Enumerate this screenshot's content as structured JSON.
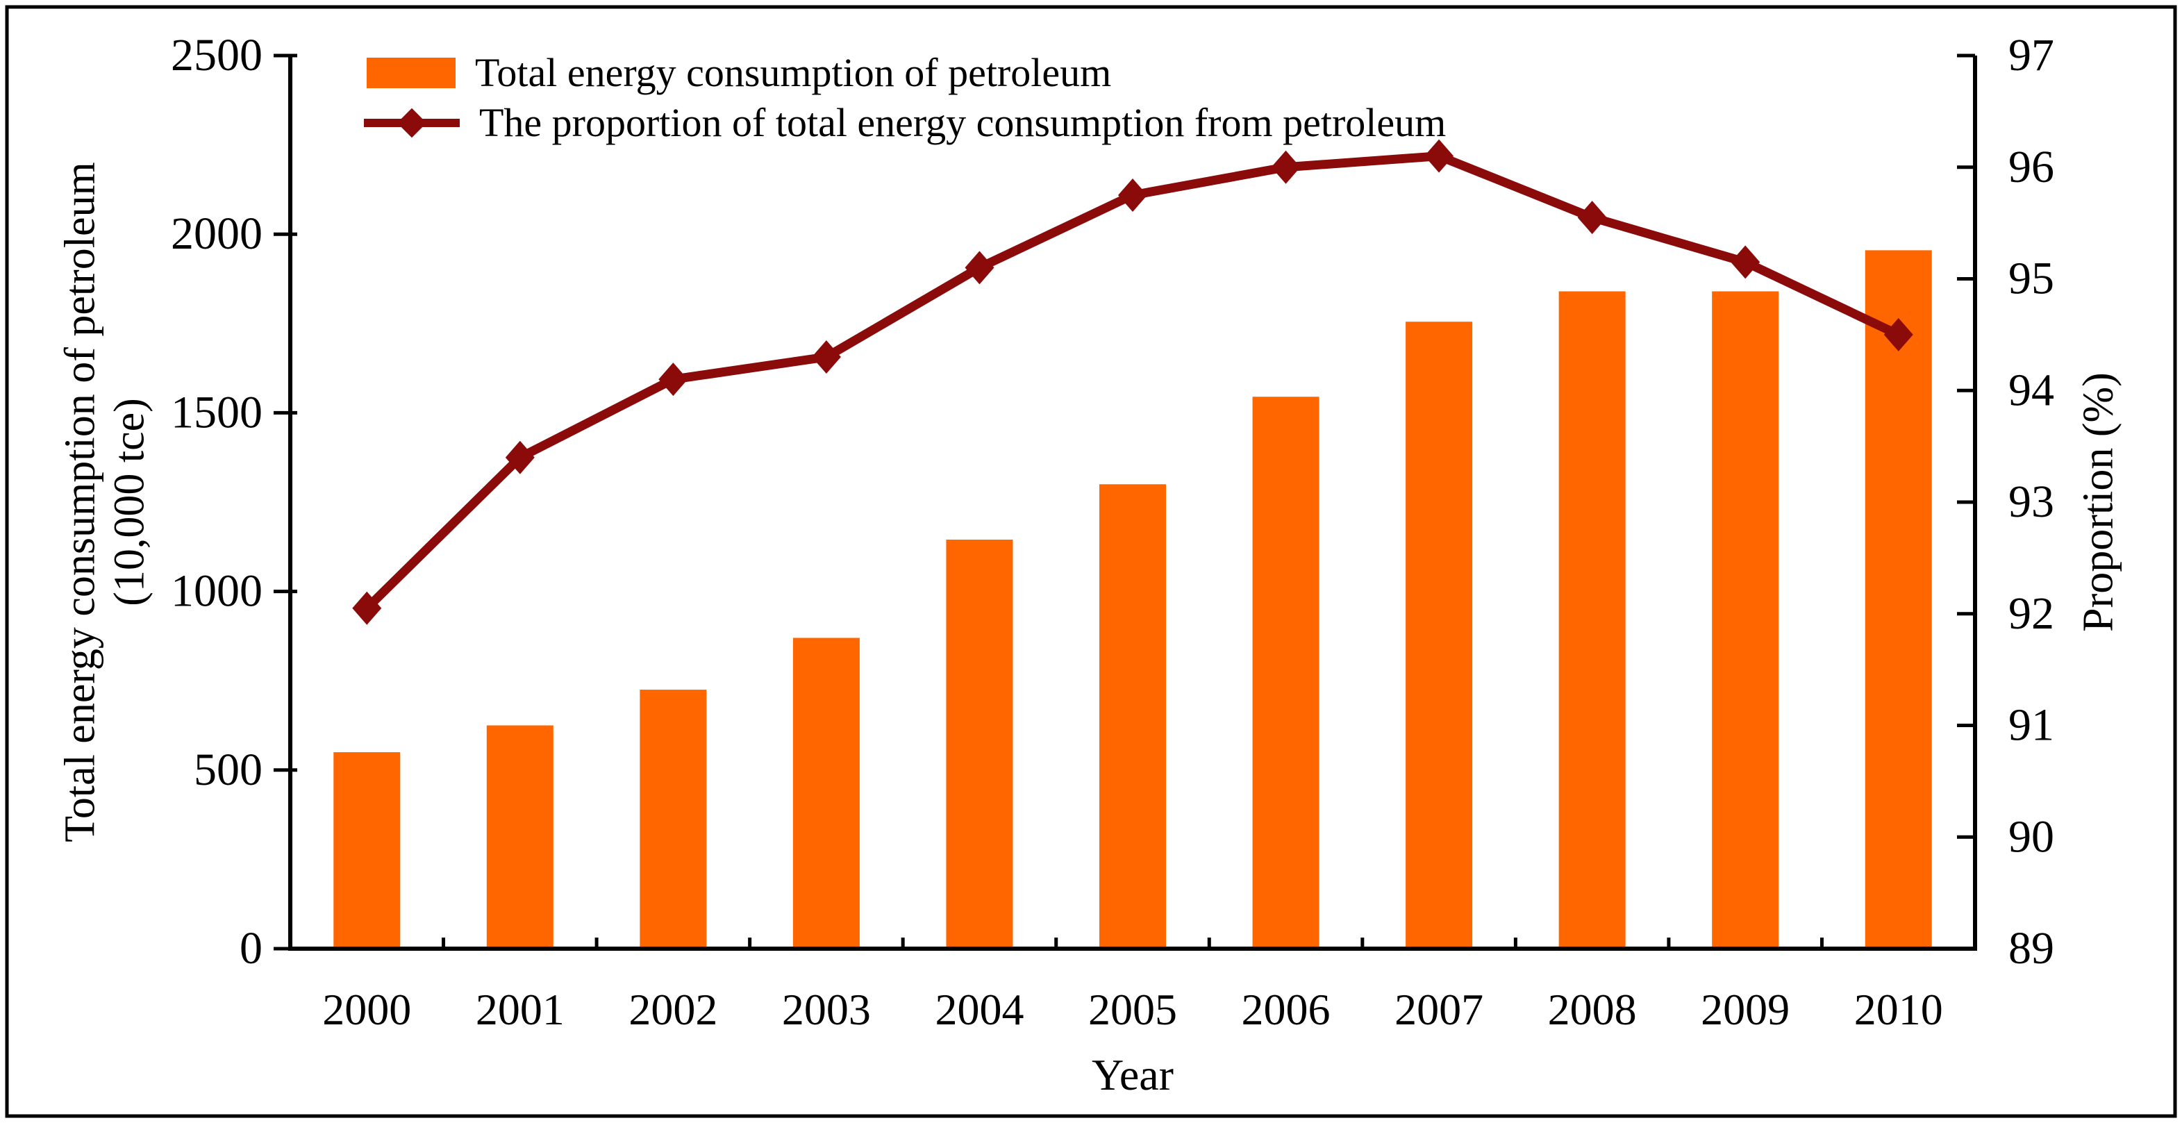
{
  "window": {
    "background": "#FFFFFF",
    "border_color": "#000000"
  },
  "legend": {
    "position": "top-left-inside",
    "items": [
      {
        "label": "Total energy consumption of petroleum",
        "marker": "bar-swatch",
        "color": "#FF6600"
      },
      {
        "label": "The proportion of total energy consumption from petroleum",
        "marker": "line-diamond",
        "color": "#8B0A0A"
      }
    ]
  },
  "chart_data": {
    "type": "combo-bar-line",
    "categories": [
      "2000",
      "2001",
      "2002",
      "2003",
      "2004",
      "2005",
      "2006",
      "2007",
      "2008",
      "2009",
      "2010"
    ],
    "series": [
      {
        "name": "Total energy consumption of petroleum",
        "type": "bar",
        "axis": "left",
        "color": "#FF6600",
        "values": [
          550,
          625,
          725,
          870,
          1145,
          1300,
          1545,
          1755,
          1840,
          1840,
          1955
        ]
      },
      {
        "name": "The proportion of total energy consumption from petroleum",
        "type": "line",
        "axis": "right",
        "color": "#8B0A0A",
        "marker": "diamond",
        "values": [
          92.05,
          93.4,
          94.1,
          94.3,
          95.1,
          95.75,
          96.0,
          96.1,
          95.55,
          95.15,
          94.5
        ]
      }
    ],
    "x_axis": {
      "title": "Year",
      "tick_labels": [
        "2000",
        "2001",
        "2002",
        "2003",
        "2004",
        "2005",
        "2006",
        "2007",
        "2008",
        "2009",
        "2010"
      ]
    },
    "left_axis": {
      "title_line1": "Total energy consumption of petroleum",
      "title_line2": "(10,000 tce)",
      "min": 0,
      "max": 2500,
      "ticks": [
        0,
        500,
        1000,
        1500,
        2000,
        2500
      ],
      "tick_labels": [
        "0",
        "500",
        "1000",
        "1500",
        "2000",
        "2500"
      ]
    },
    "right_axis": {
      "title": "Proportion (%)",
      "min": 89,
      "max": 97,
      "ticks": [
        89,
        90,
        91,
        92,
        93,
        94,
        95,
        96,
        97
      ],
      "tick_labels": [
        "89",
        "90",
        "91",
        "92",
        "93",
        "94",
        "95",
        "96",
        "97"
      ]
    },
    "grid": false
  }
}
